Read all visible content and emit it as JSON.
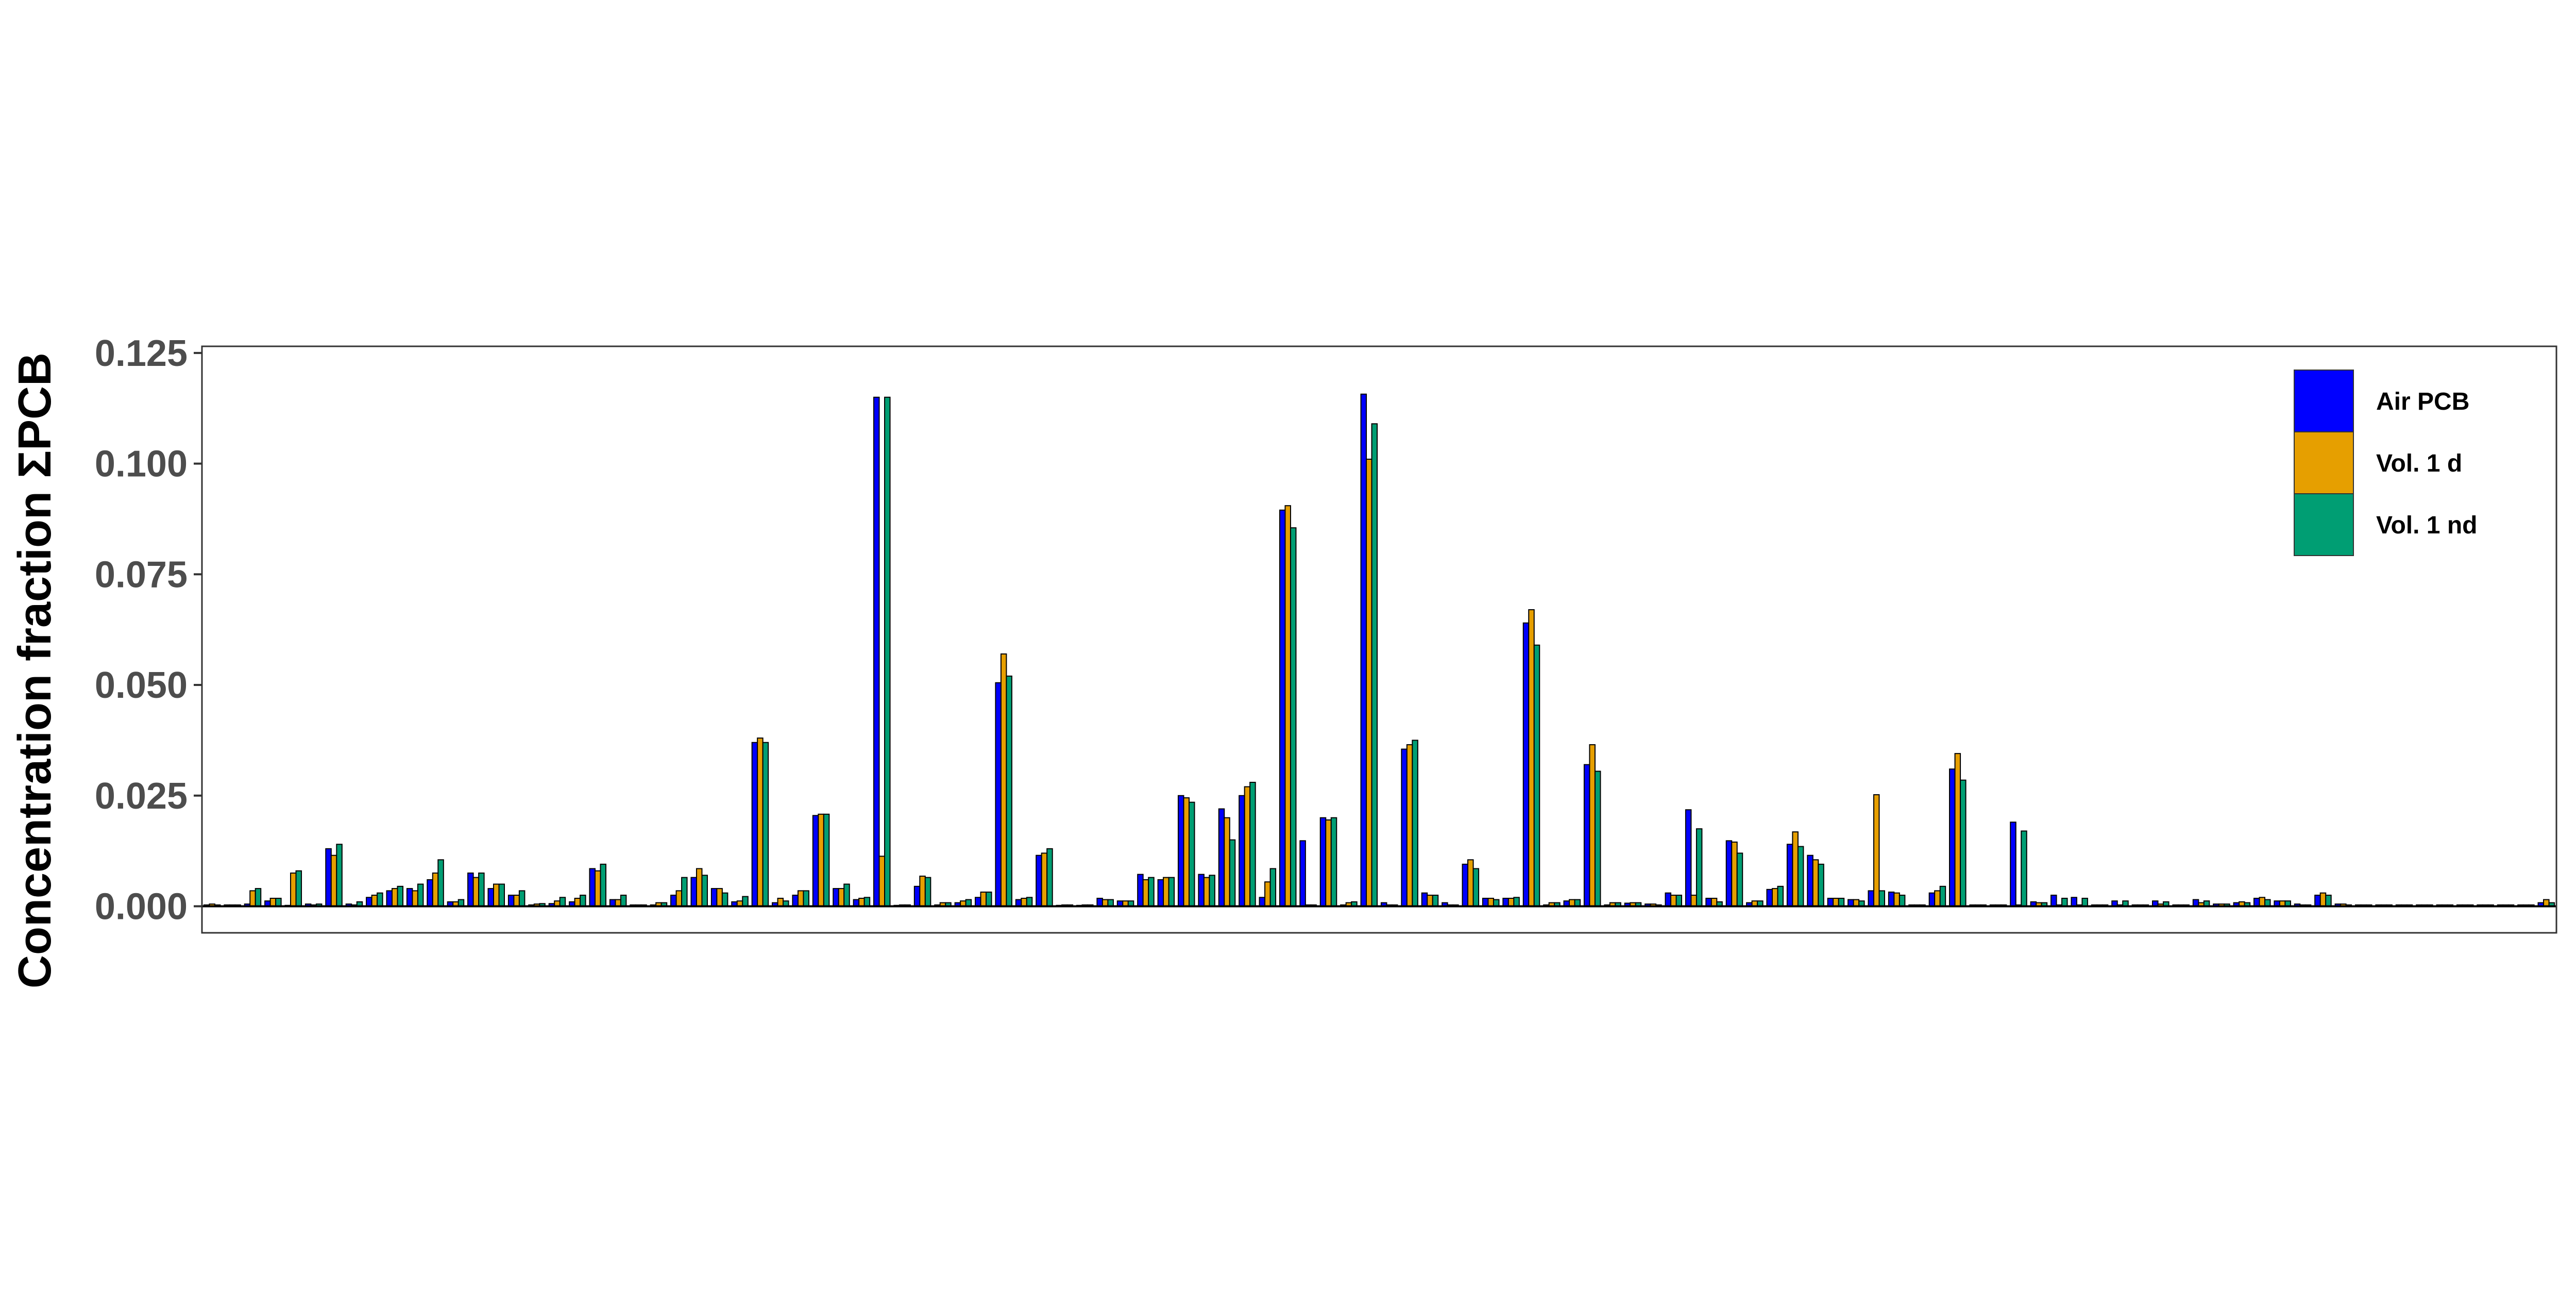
{
  "chart_data": {
    "type": "bar",
    "title": "",
    "xlabel": "",
    "ylabel": "Concentration fraction ΣPCB",
    "ylim": [
      -0.006,
      0.1265
    ],
    "yticks": [
      {
        "value": 0.0,
        "label": "0.000"
      },
      {
        "value": 0.025,
        "label": "0.025"
      },
      {
        "value": 0.05,
        "label": "0.050"
      },
      {
        "value": 0.075,
        "label": "0.075"
      },
      {
        "value": 0.1,
        "label": "0.100"
      },
      {
        "value": 0.125,
        "label": "0.125"
      }
    ],
    "grid": false,
    "legend_position": "top-right",
    "series": [
      {
        "name": "Air PCB",
        "color": "#0000FF",
        "values": [
          0.0003,
          0.0003,
          0.0005,
          0.0012,
          0.0002,
          0.0005,
          0.013,
          0.0005,
          0.002,
          0.0035,
          0.004,
          0.006,
          0.001,
          0.0075,
          0.004,
          0.0025,
          0.0003,
          0.0006,
          0.001,
          0.0085,
          0.0015,
          0.0003,
          0.0003,
          0.0025,
          0.0065,
          0.004,
          0.001,
          0.037,
          0.0008,
          0.0025,
          0.0205,
          0.004,
          0.0015,
          0.115,
          0.0002,
          0.0045,
          0.0003,
          0.0008,
          0.002,
          0.0505,
          0.0015,
          0.0115,
          0.0002,
          0.0002,
          0.0018,
          0.0012,
          0.0072,
          0.006,
          0.025,
          0.0072,
          0.022,
          0.025,
          0.002,
          0.0895,
          0.0148,
          0.02,
          0.0003,
          0.1157,
          0.0008,
          0.0355,
          0.003,
          0.0008,
          0.0095,
          0.0018,
          0.0018,
          0.064,
          0.0003,
          0.0012,
          0.032,
          0.0003,
          0.0007,
          0.0005,
          0.003,
          0.0218,
          0.0018,
          0.0148,
          0.0008,
          0.0038,
          0.014,
          0.0115,
          0.0018,
          0.0015,
          0.0035,
          0.0032,
          0.0003,
          0.003,
          0.031,
          0.0003,
          0.0003,
          0.019,
          0.001,
          0.0025,
          0.002,
          0.0003,
          0.0012,
          0.0003,
          0.0012,
          0.0003,
          0.0015,
          0.0005,
          0.0008,
          0.0018,
          0.0012,
          0.0005,
          0.0025,
          0.0005,
          0.0003,
          0.0003,
          0.0003,
          0.0003,
          0.0003,
          0.0003,
          0.0003,
          0.0003,
          0.0003,
          0.0008
        ]
      },
      {
        "name": "Vol. 1 d",
        "color": "#E69F00",
        "values": [
          0.0005,
          0.0003,
          0.0035,
          0.0018,
          0.0075,
          0.0003,
          0.0115,
          0.0003,
          0.0025,
          0.004,
          0.0035,
          0.0075,
          0.001,
          0.0065,
          0.005,
          0.0025,
          0.0005,
          0.0012,
          0.0018,
          0.008,
          0.0015,
          0.0003,
          0.0008,
          0.0035,
          0.0085,
          0.004,
          0.0012,
          0.038,
          0.0018,
          0.0035,
          0.0208,
          0.004,
          0.0018,
          0.0113,
          0.0003,
          0.0068,
          0.0008,
          0.0012,
          0.0032,
          0.057,
          0.0018,
          0.012,
          0.0003,
          0.0003,
          0.0015,
          0.0012,
          0.006,
          0.0065,
          0.0245,
          0.0065,
          0.02,
          0.027,
          0.0055,
          0.0905,
          0.0003,
          0.0195,
          0.0008,
          0.101,
          0.0003,
          0.0365,
          0.0025,
          0.0003,
          0.0105,
          0.0018,
          0.0018,
          0.067,
          0.0008,
          0.0015,
          0.0365,
          0.0008,
          0.0008,
          0.0005,
          0.0025,
          0.0025,
          0.0018,
          0.0145,
          0.0012,
          0.004,
          0.0168,
          0.0105,
          0.0018,
          0.0015,
          0.0252,
          0.003,
          0.0003,
          0.0035,
          0.0345,
          0.0003,
          0.0003,
          0.0003,
          0.0008,
          0.0003,
          0.0003,
          0.0003,
          0.0003,
          0.0003,
          0.0005,
          0.0003,
          0.0008,
          0.0005,
          0.001,
          0.002,
          0.0012,
          0.0003,
          0.003,
          0.0005,
          0.0003,
          0.0003,
          0.0003,
          0.0003,
          0.0003,
          0.0003,
          0.0003,
          0.0003,
          0.0003,
          0.0015
        ]
      },
      {
        "name": "Vol. 1 nd",
        "color": "#009E73",
        "values": [
          0.0003,
          0.0003,
          0.004,
          0.0018,
          0.008,
          0.0005,
          0.014,
          0.001,
          0.003,
          0.0045,
          0.005,
          0.0105,
          0.0015,
          0.0075,
          0.005,
          0.0035,
          0.0006,
          0.002,
          0.0025,
          0.0095,
          0.0025,
          0.0003,
          0.0008,
          0.0065,
          0.007,
          0.003,
          0.0022,
          0.037,
          0.0012,
          0.0035,
          0.0208,
          0.005,
          0.002,
          0.115,
          0.0003,
          0.0065,
          0.0008,
          0.0015,
          0.0032,
          0.052,
          0.002,
          0.013,
          0.0003,
          0.0003,
          0.0015,
          0.0012,
          0.0065,
          0.0065,
          0.0235,
          0.007,
          0.015,
          0.028,
          0.0085,
          0.0855,
          0.0003,
          0.02,
          0.001,
          0.109,
          0.0003,
          0.0375,
          0.0025,
          0.0003,
          0.0085,
          0.0015,
          0.002,
          0.059,
          0.0008,
          0.0015,
          0.0305,
          0.0008,
          0.0008,
          0.0003,
          0.0025,
          0.0175,
          0.001,
          0.012,
          0.0012,
          0.0045,
          0.0135,
          0.0095,
          0.0018,
          0.0012,
          0.0035,
          0.0025,
          0.0003,
          0.0045,
          0.0285,
          0.0003,
          0.0003,
          0.017,
          0.0008,
          0.0018,
          0.0018,
          0.0003,
          0.0012,
          0.0003,
          0.001,
          0.0003,
          0.0012,
          0.0005,
          0.0008,
          0.0015,
          0.0012,
          0.0003,
          0.0025,
          0.0003,
          0.0003,
          0.0003,
          0.0003,
          0.0003,
          0.0003,
          0.0003,
          0.0003,
          0.0003,
          0.0003,
          0.0008
        ]
      }
    ]
  }
}
